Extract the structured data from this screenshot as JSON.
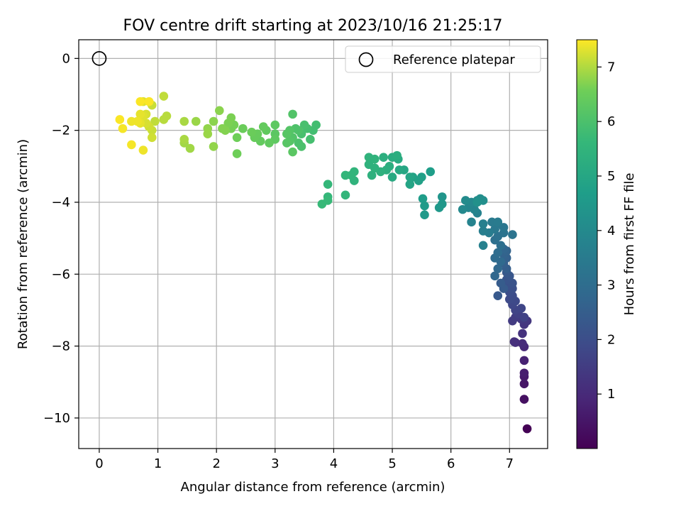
{
  "chart_data": {
    "type": "scatter",
    "title": "FOV centre drift starting at 2023/10/16 21:25:17",
    "xlabel": "Angular distance from reference (arcmin)",
    "ylabel": "Rotation from reference (arcmin)",
    "xlim": [
      -0.35,
      7.65
    ],
    "ylim": [
      -10.85,
      0.52
    ],
    "xticks": [
      0,
      1,
      2,
      3,
      4,
      5,
      6,
      7
    ],
    "yticks": [
      0,
      -2,
      -4,
      -6,
      -8,
      -10
    ],
    "grid": true,
    "legend": {
      "position": "top-right",
      "entries": [
        "Reference platepar"
      ]
    },
    "reference_point": {
      "x": 0,
      "y": 0
    },
    "colorbar": {
      "label": "Hours from first FF file",
      "range": [
        0,
        7.5
      ],
      "ticks": [
        1,
        2,
        3,
        4,
        5,
        6,
        7
      ],
      "colormap": "viridis"
    },
    "series": [
      {
        "points": [
          [
            7.3,
            -10.3,
            0.02
          ],
          [
            7.25,
            -9.48,
            0.35
          ],
          [
            7.25,
            -9.05,
            0.5
          ],
          [
            7.25,
            -8.85,
            0.6
          ],
          [
            7.25,
            -8.75,
            0.7
          ],
          [
            7.25,
            -8.4,
            0.8
          ],
          [
            7.25,
            -8.02,
            0.95
          ],
          [
            7.22,
            -7.93,
            1.05
          ],
          [
            7.1,
            -7.9,
            1.1
          ],
          [
            7.08,
            -7.88,
            1.15
          ],
          [
            7.22,
            -7.65,
            1.2
          ],
          [
            7.25,
            -7.4,
            1.3
          ],
          [
            7.3,
            -7.3,
            1.35
          ],
          [
            7.2,
            -7.25,
            1.4
          ],
          [
            7.05,
            -7.3,
            1.45
          ],
          [
            7.1,
            -7.2,
            1.5
          ],
          [
            7.15,
            -7.1,
            1.6
          ],
          [
            7.25,
            -7.2,
            1.65
          ],
          [
            7.1,
            -7.0,
            1.7
          ],
          [
            7.2,
            -6.95,
            1.75
          ],
          [
            7.05,
            -6.85,
            1.8
          ],
          [
            7.1,
            -6.75,
            1.85
          ],
          [
            7.0,
            -6.7,
            1.9
          ],
          [
            7.05,
            -6.6,
            1.95
          ],
          [
            7.0,
            -6.5,
            2.0
          ],
          [
            7.05,
            -6.4,
            2.05
          ],
          [
            6.95,
            -6.35,
            2.1
          ],
          [
            7.05,
            -6.25,
            2.15
          ],
          [
            6.95,
            -6.15,
            2.2
          ],
          [
            7.0,
            -6.05,
            2.25
          ],
          [
            6.95,
            -5.95,
            2.3
          ],
          [
            6.8,
            -6.6,
            2.35
          ],
          [
            6.9,
            -6.4,
            2.4
          ],
          [
            6.85,
            -6.25,
            2.45
          ],
          [
            6.95,
            -5.85,
            2.5
          ],
          [
            6.9,
            -5.7,
            2.55
          ],
          [
            6.95,
            -5.55,
            2.6
          ],
          [
            6.9,
            -5.45,
            2.65
          ],
          [
            6.95,
            -5.35,
            2.7
          ],
          [
            6.9,
            -5.3,
            2.75
          ],
          [
            6.75,
            -6.05,
            2.8
          ],
          [
            6.8,
            -5.85,
            2.85
          ],
          [
            6.85,
            -5.65,
            2.9
          ],
          [
            6.75,
            -5.55,
            2.95
          ],
          [
            6.8,
            -5.4,
            3.0
          ],
          [
            6.85,
            -5.2,
            3.05
          ],
          [
            6.75,
            -5.05,
            3.1
          ],
          [
            6.8,
            -4.95,
            3.15
          ],
          [
            6.9,
            -4.85,
            3.2
          ],
          [
            7.05,
            -4.9,
            3.25
          ],
          [
            6.9,
            -4.7,
            3.3
          ],
          [
            6.8,
            -4.6,
            3.35
          ],
          [
            6.75,
            -4.75,
            3.4
          ],
          [
            6.7,
            -4.55,
            3.45
          ],
          [
            6.8,
            -4.55,
            3.5
          ],
          [
            6.65,
            -4.85,
            3.55
          ],
          [
            6.55,
            -4.8,
            3.6
          ],
          [
            6.55,
            -4.6,
            3.65
          ],
          [
            6.55,
            -5.2,
            3.7
          ],
          [
            6.45,
            -4.3,
            3.75
          ],
          [
            6.35,
            -4.55,
            3.8
          ],
          [
            6.4,
            -4.2,
            3.85
          ],
          [
            6.3,
            -4.15,
            3.9
          ],
          [
            6.35,
            -4.0,
            3.95
          ],
          [
            6.2,
            -4.2,
            4.0
          ],
          [
            6.25,
            -3.95,
            4.05
          ],
          [
            6.45,
            -3.95,
            4.1
          ],
          [
            6.5,
            -3.9,
            4.15
          ],
          [
            6.55,
            -3.95,
            4.2
          ],
          [
            6.45,
            -4.0,
            4.25
          ],
          [
            5.85,
            -3.85,
            4.4
          ],
          [
            5.85,
            -4.05,
            4.45
          ],
          [
            5.8,
            -4.15,
            4.5
          ],
          [
            5.55,
            -4.35,
            4.55
          ],
          [
            5.55,
            -4.1,
            4.6
          ],
          [
            5.52,
            -3.9,
            4.65
          ],
          [
            5.65,
            -3.15,
            4.7
          ],
          [
            5.5,
            -3.3,
            4.75
          ],
          [
            5.45,
            -3.4,
            4.8
          ],
          [
            5.35,
            -3.3,
            4.85
          ],
          [
            5.3,
            -3.5,
            4.9
          ],
          [
            5.3,
            -3.3,
            4.95
          ],
          [
            5.2,
            -3.1,
            5.0
          ],
          [
            5.12,
            -3.1,
            5.05
          ],
          [
            5.0,
            -3.3,
            5.1
          ],
          [
            5.1,
            -2.8,
            5.15
          ],
          [
            5.0,
            -2.75,
            5.2
          ],
          [
            5.08,
            -2.7,
            5.25
          ],
          [
            4.95,
            -3.0,
            5.25
          ],
          [
            4.85,
            -2.75,
            5.3
          ],
          [
            4.9,
            -3.1,
            5.3
          ],
          [
            4.8,
            -3.15,
            5.35
          ],
          [
            4.65,
            -3.25,
            5.35
          ],
          [
            4.7,
            -3.05,
            5.4
          ],
          [
            4.6,
            -2.95,
            5.4
          ],
          [
            4.7,
            -2.8,
            5.45
          ],
          [
            4.6,
            -2.75,
            5.45
          ],
          [
            4.35,
            -3.4,
            5.45
          ],
          [
            4.35,
            -3.15,
            5.5
          ],
          [
            4.3,
            -3.25,
            5.5
          ],
          [
            4.2,
            -3.25,
            5.55
          ],
          [
            4.2,
            -3.8,
            5.55
          ],
          [
            3.9,
            -3.5,
            5.6
          ],
          [
            3.9,
            -3.85,
            5.6
          ],
          [
            3.9,
            -3.95,
            5.65
          ],
          [
            3.8,
            -4.05,
            5.65
          ],
          [
            3.7,
            -1.85,
            5.85
          ],
          [
            3.65,
            -2.0,
            5.85
          ],
          [
            3.6,
            -2.25,
            5.9
          ],
          [
            3.55,
            -1.95,
            5.9
          ],
          [
            3.5,
            -1.85,
            5.95
          ],
          [
            3.45,
            -2.1,
            5.95
          ],
          [
            3.4,
            -2.35,
            6.0
          ],
          [
            3.45,
            -2.45,
            6.0
          ],
          [
            3.4,
            -2.0,
            6.05
          ],
          [
            3.35,
            -1.95,
            6.05
          ],
          [
            3.3,
            -2.2,
            6.1
          ],
          [
            3.3,
            -1.55,
            6.1
          ],
          [
            3.25,
            -2.0,
            6.15
          ],
          [
            3.25,
            -2.3,
            6.15
          ],
          [
            3.2,
            -2.1,
            6.2
          ],
          [
            3.2,
            -2.35,
            6.2
          ],
          [
            3.3,
            -2.6,
            6.25
          ],
          [
            3.0,
            -2.1,
            6.25
          ],
          [
            3.0,
            -1.85,
            6.3
          ],
          [
            3.0,
            -2.25,
            6.3
          ],
          [
            2.9,
            -2.35,
            6.35
          ],
          [
            2.85,
            -2.0,
            6.35
          ],
          [
            2.8,
            -1.9,
            6.4
          ],
          [
            2.75,
            -2.3,
            6.4
          ],
          [
            2.7,
            -2.1,
            6.45
          ],
          [
            2.65,
            -2.2,
            6.45
          ],
          [
            2.6,
            -2.05,
            6.5
          ],
          [
            2.45,
            -1.95,
            6.5
          ],
          [
            2.35,
            -2.2,
            6.55
          ],
          [
            2.35,
            -2.65,
            6.55
          ],
          [
            2.3,
            -1.85,
            6.6
          ],
          [
            2.25,
            -1.95,
            6.6
          ],
          [
            2.25,
            -1.65,
            6.65
          ],
          [
            2.2,
            -1.8,
            6.65
          ],
          [
            2.15,
            -2.0,
            6.7
          ],
          [
            2.1,
            -1.95,
            6.7
          ],
          [
            2.05,
            -1.45,
            6.75
          ],
          [
            1.95,
            -1.75,
            6.75
          ],
          [
            1.95,
            -2.45,
            6.8
          ],
          [
            1.85,
            -1.95,
            6.8
          ],
          [
            1.85,
            -2.1,
            6.85
          ],
          [
            1.65,
            -1.75,
            6.85
          ],
          [
            1.55,
            -2.5,
            6.9
          ],
          [
            1.45,
            -2.35,
            6.9
          ],
          [
            1.45,
            -2.25,
            6.95
          ],
          [
            1.45,
            -1.75,
            6.95
          ],
          [
            1.15,
            -1.6,
            7.05
          ],
          [
            1.1,
            -1.7,
            7.05
          ],
          [
            1.1,
            -1.05,
            7.1
          ],
          [
            0.95,
            -1.75,
            7.1
          ],
          [
            0.9,
            -1.3,
            7.15
          ],
          [
            0.9,
            -2.0,
            7.15
          ],
          [
            0.9,
            -2.2,
            7.2
          ],
          [
            0.85,
            -1.9,
            7.2
          ],
          [
            0.8,
            -1.55,
            7.25
          ],
          [
            0.8,
            -1.8,
            7.25
          ],
          [
            0.75,
            -1.6,
            7.3
          ],
          [
            0.75,
            -1.2,
            7.3
          ],
          [
            0.7,
            -1.8,
            7.35
          ],
          [
            0.7,
            -1.55,
            7.35
          ],
          [
            0.75,
            -2.55,
            7.4
          ],
          [
            0.65,
            -1.75,
            7.4
          ],
          [
            0.55,
            -1.75,
            7.4
          ],
          [
            0.55,
            -2.4,
            7.45
          ],
          [
            0.4,
            -1.95,
            7.45
          ],
          [
            0.35,
            -1.7,
            7.48
          ],
          [
            0.7,
            -1.2,
            7.48
          ],
          [
            0.85,
            -1.2,
            7.48
          ]
        ]
      }
    ]
  }
}
